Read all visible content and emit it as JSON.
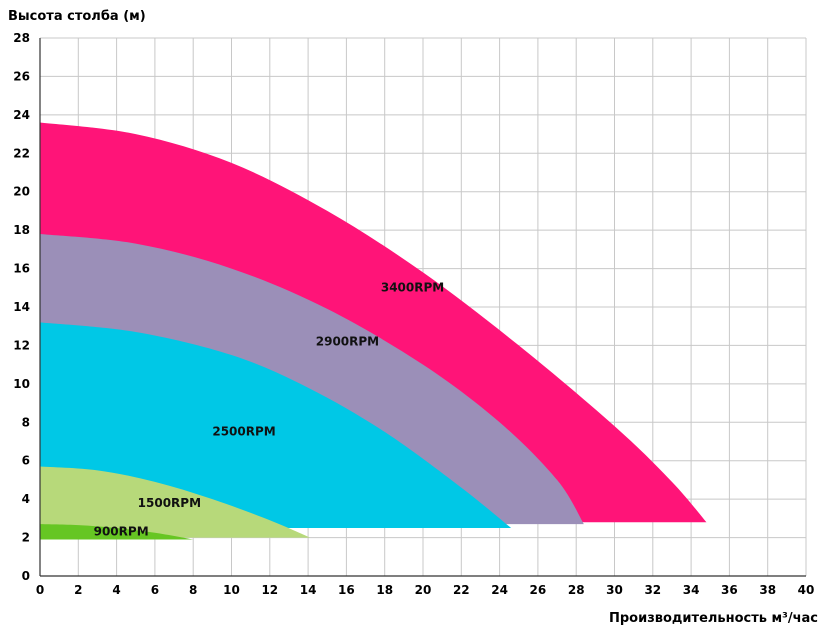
{
  "chart_data": {
    "type": "area",
    "title": "",
    "ylabel": "Высота столба (м)",
    "xlabel": "Производительность м³/час",
    "xlim": [
      0,
      40
    ],
    "ylim": [
      0,
      28
    ],
    "x_ticks": [
      0,
      2,
      4,
      6,
      8,
      10,
      12,
      14,
      16,
      18,
      20,
      22,
      24,
      26,
      28,
      30,
      32,
      34,
      36,
      38,
      40
    ],
    "y_ticks": [
      0,
      2,
      4,
      6,
      8,
      10,
      12,
      14,
      16,
      18,
      20,
      22,
      24,
      26,
      28
    ],
    "grid": true,
    "legend": "none",
    "series": [
      {
        "name": "3400RPM",
        "color": "#ff1478",
        "label_at": [
          17.8,
          14.8
        ],
        "points": [
          [
            0,
            23.6
          ],
          [
            5,
            23.0
          ],
          [
            10,
            21.5
          ],
          [
            15,
            19.0
          ],
          [
            20,
            15.8
          ],
          [
            25,
            12.0
          ],
          [
            30,
            7.8
          ],
          [
            33,
            4.9
          ],
          [
            34.8,
            2.8
          ]
        ]
      },
      {
        "name": "2900RPM",
        "color": "#9b8fb8",
        "label_at": [
          14.4,
          12.0
        ],
        "points": [
          [
            0,
            17.8
          ],
          [
            5,
            17.3
          ],
          [
            10,
            16.0
          ],
          [
            15,
            13.9
          ],
          [
            20,
            11.0
          ],
          [
            24,
            8.0
          ],
          [
            27,
            5.0
          ],
          [
            28.4,
            2.7
          ]
        ]
      },
      {
        "name": "2500RPM",
        "color": "#00c8e6",
        "label_at": [
          9.0,
          7.3
        ],
        "points": [
          [
            0,
            13.2
          ],
          [
            5,
            12.7
          ],
          [
            10,
            11.5
          ],
          [
            14,
            9.8
          ],
          [
            18,
            7.5
          ],
          [
            22,
            4.6
          ],
          [
            24.6,
            2.5
          ]
        ]
      },
      {
        "name": "1500RPM",
        "color": "#b7d97a",
        "label_at": [
          5.1,
          3.6
        ],
        "points": [
          [
            0,
            5.7
          ],
          [
            3,
            5.5
          ],
          [
            6,
            4.9
          ],
          [
            9,
            4.0
          ],
          [
            12,
            2.9
          ],
          [
            14.1,
            2.0
          ]
        ]
      },
      {
        "name": "900RPM",
        "color": "#66c623",
        "label_at": [
          2.8,
          2.1
        ],
        "points": [
          [
            0,
            2.7
          ],
          [
            2,
            2.65
          ],
          [
            4,
            2.5
          ],
          [
            6,
            2.25
          ],
          [
            8,
            1.9
          ]
        ]
      }
    ]
  }
}
